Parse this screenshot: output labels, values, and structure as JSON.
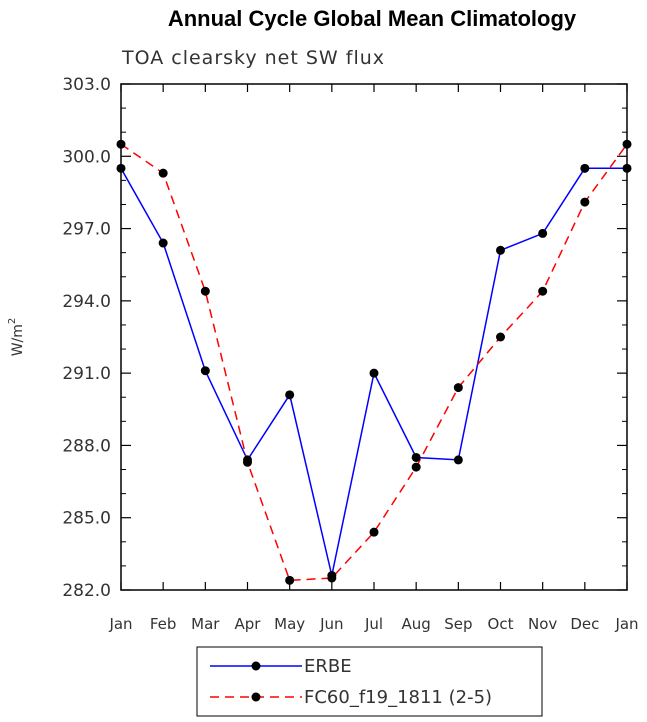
{
  "chart_data": {
    "type": "line",
    "title": "Annual Cycle Global Mean Climatology",
    "subtitle": "TOA clearsky net SW flux",
    "xlabel": "",
    "ylabel": "W/m",
    "ylabel_sup": "2",
    "categories": [
      "Jan",
      "Feb",
      "Mar",
      "Apr",
      "May",
      "Jun",
      "Jul",
      "Aug",
      "Sep",
      "Oct",
      "Nov",
      "Dec",
      "Jan"
    ],
    "ylim": [
      282.0,
      303.0
    ],
    "yticks": [
      "282.0",
      "285.0",
      "288.0",
      "291.0",
      "294.0",
      "297.0",
      "300.0",
      "303.0"
    ],
    "grid": false,
    "legend_position": "bottom",
    "series": [
      {
        "name": "ERBE",
        "color": "#0000ff",
        "line_style": "solid",
        "marker": "filled-circle",
        "values": [
          299.5,
          296.4,
          291.1,
          287.4,
          290.1,
          282.6,
          291.0,
          287.5,
          287.4,
          296.1,
          296.8,
          299.5,
          299.5
        ]
      },
      {
        "name": "FC60_f19_1811 (2-5)",
        "color": "#ff0000",
        "line_style": "dashed",
        "marker": "filled-circle",
        "values": [
          300.5,
          299.3,
          294.4,
          287.3,
          282.4,
          282.5,
          284.4,
          287.1,
          290.4,
          292.5,
          294.4,
          298.1,
          300.5
        ]
      }
    ]
  }
}
